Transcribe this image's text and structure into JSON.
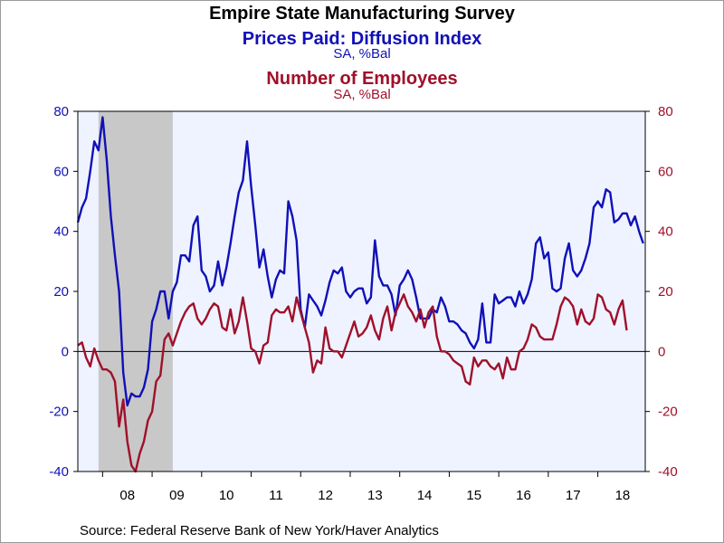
{
  "title": "Empire State Manufacturing Survey",
  "subtitle1": "Prices Paid: Diffusion Index",
  "subtitle1_units": "SA, %Bal",
  "subtitle2": "Number of Employees",
  "subtitle2_units": "SA, %Bal",
  "source": "Source:  Federal Reserve Bank of New York/Haver Analytics",
  "colors": {
    "prices": "#1010b8",
    "employees": "#a0102a",
    "plot_bg": "#eef3ff",
    "recession": "#c8c8c8"
  },
  "chart_data": {
    "type": "line",
    "x_unit": "year (fractional), monthly observations 2007.5 to 2018.917",
    "x_range": [
      2007.5,
      2018.958
    ],
    "x_tick_labels": [
      "08",
      "09",
      "10",
      "11",
      "12",
      "13",
      "14",
      "15",
      "16",
      "17",
      "18"
    ],
    "y_left": {
      "range": [
        -40,
        80
      ],
      "ticks": [
        "80",
        "60",
        "40",
        "20",
        "0",
        "-20",
        "-40"
      ]
    },
    "y_right": {
      "range": [
        -40,
        80
      ],
      "ticks": [
        "80",
        "60",
        "40",
        "20",
        "0",
        "-20",
        "-40"
      ]
    },
    "recession_shading": [
      2007.917,
      2009.417
    ],
    "zero_line": true,
    "x_start": 2007.5,
    "x_step": 0.08333,
    "series": [
      {
        "name": "Prices Paid: Diffusion Index",
        "axis": "left",
        "color": "#1010b8",
        "values": [
          43,
          48,
          51,
          60,
          70,
          67,
          78,
          64,
          45,
          32,
          20,
          -7,
          -18,
          -14,
          -15,
          -15,
          -12,
          -6,
          10,
          14,
          20,
          20,
          11,
          20,
          23,
          32,
          32,
          30,
          42,
          45,
          27,
          25,
          20,
          22,
          30,
          22,
          28,
          36,
          45,
          53,
          57,
          70,
          55,
          42,
          28,
          34,
          25,
          18,
          24,
          27,
          26,
          50,
          45,
          37,
          14,
          8,
          19,
          17,
          15,
          12,
          17,
          23,
          27,
          26,
          28,
          20,
          18,
          20,
          21,
          21,
          16,
          18,
          37,
          25,
          22,
          22,
          19,
          12,
          22,
          24,
          27,
          24,
          18,
          11,
          11,
          11,
          14,
          13,
          18,
          15,
          10,
          10,
          9,
          7,
          6,
          3,
          1,
          4,
          16,
          3,
          3,
          19,
          16,
          17,
          18,
          18,
          15,
          20,
          16,
          19,
          24,
          36,
          38,
          31,
          33,
          21,
          20,
          21,
          31,
          36,
          27,
          25,
          27,
          31,
          36,
          48,
          50,
          48,
          54,
          53,
          43,
          44,
          46,
          46,
          42,
          45,
          40,
          36
        ]
      },
      {
        "name": "Number of Employees",
        "axis": "right",
        "color": "#a0102a",
        "values": [
          2,
          3,
          -2,
          -5,
          1,
          -3,
          -6,
          -6,
          -7,
          -10,
          -25,
          -16,
          -30,
          -38,
          -40,
          -34,
          -30,
          -23,
          -20,
          -10,
          -8,
          4,
          6,
          2,
          6,
          10,
          13,
          15,
          16,
          11,
          9,
          11,
          14,
          16,
          15,
          8,
          7,
          14,
          6,
          10,
          18,
          10,
          1,
          0,
          -4,
          2,
          3,
          12,
          14,
          13,
          13,
          15,
          10,
          18,
          13,
          8,
          3,
          -7,
          -3,
          -4,
          8,
          1,
          0,
          0,
          -2,
          2,
          6,
          10,
          5,
          6,
          8,
          12,
          7,
          4,
          11,
          15,
          7,
          13,
          16,
          19,
          15,
          13,
          10,
          14,
          8,
          13,
          15,
          5,
          0,
          0,
          -1,
          -3,
          -4,
          -5,
          -10,
          -11,
          -2,
          -5,
          -3,
          -3,
          -5,
          -6,
          -4,
          -9,
          -2,
          -6,
          -6,
          0,
          1,
          4,
          9,
          8,
          5,
          4,
          4,
          4,
          9,
          15,
          18,
          17,
          15,
          9,
          14,
          10,
          9,
          11,
          19,
          18,
          14,
          13,
          9,
          14,
          17,
          7
        ]
      }
    ]
  }
}
